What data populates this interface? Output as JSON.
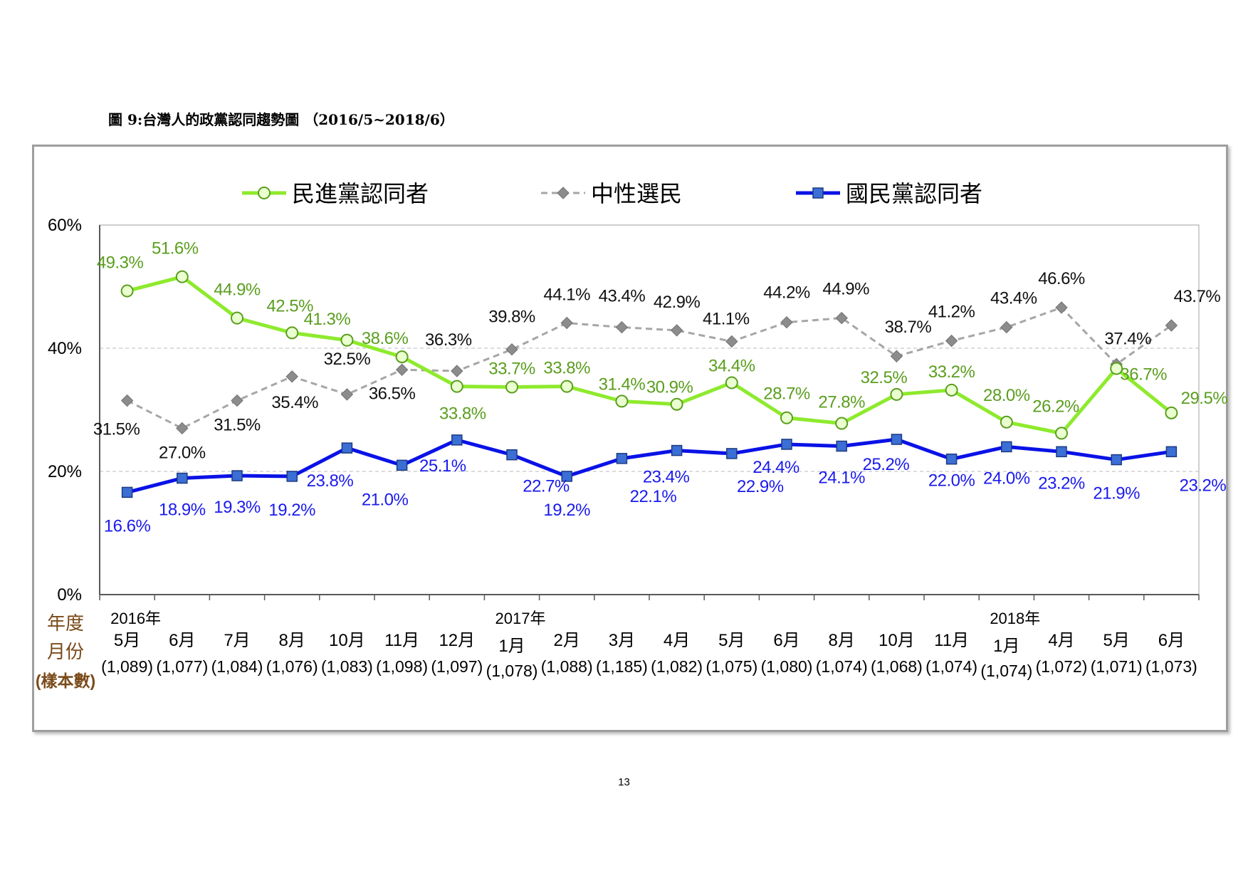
{
  "figure_title": "圖 9:台灣人的政黨認同趨勢圖 （2016/5~2018/6）",
  "page_number": "13",
  "chart_data": {
    "type": "line",
    "ylim": [
      0,
      60
    ],
    "yticks": [
      "0%",
      "20%",
      "40%",
      "60%"
    ],
    "ytick_values": [
      0,
      20,
      40,
      60
    ],
    "grid": "horizontal dashed at 20% and 40%",
    "legend_position": "top",
    "row_labels": {
      "year": "年度",
      "month": "月份",
      "sample": "(樣本數)"
    },
    "year_labels": [
      "2016年",
      "",
      "",
      "",
      "",
      "",
      "",
      "2017年",
      "",
      "",
      "",
      "",
      "",
      "",
      "",
      "",
      "2018年",
      "",
      "",
      ""
    ],
    "months": [
      "5月",
      "6月",
      "7月",
      "8月",
      "10月",
      "11月",
      "12月",
      "1月",
      "2月",
      "3月",
      "4月",
      "5月",
      "6月",
      "8月",
      "10月",
      "11月",
      "1月",
      "4月",
      "5月",
      "6月"
    ],
    "samples": [
      "(1,089)",
      "(1,077)",
      "(1,084)",
      "(1,076)",
      "(1,083)",
      "(1,098)",
      "(1,097)",
      "(1,078)",
      "(1,088)",
      "(1,185)",
      "(1,082)",
      "(1,075)",
      "(1,080)",
      "(1,074)",
      "(1,068)",
      "(1,074)",
      "(1,074)",
      "(1,072)",
      "(1,071)",
      "(1,073)"
    ],
    "series": [
      {
        "name": "民進黨認同者",
        "color": "#8eea2d",
        "label_color": "#5a9e1e",
        "marker": "circle",
        "values": [
          49.3,
          51.6,
          44.9,
          42.5,
          41.3,
          38.6,
          33.8,
          33.7,
          33.8,
          31.4,
          30.9,
          34.4,
          28.7,
          27.8,
          32.5,
          33.2,
          28.0,
          26.2,
          36.7,
          29.5
        ],
        "labels": [
          "49.3%",
          "51.6%",
          "44.9%",
          "42.5%",
          "41.3%",
          "38.6%",
          "33.8%",
          "33.7%",
          "33.8%",
          "31.4%",
          "30.9%",
          "34.4%",
          "28.7%",
          "27.8%",
          "32.5%",
          "33.2%",
          "28.0%",
          "26.2%",
          "36.7%",
          "29.5%"
        ]
      },
      {
        "name": "中性選民",
        "color": "#a6a6a6",
        "label_color": "#111111",
        "marker": "diamond",
        "dashed": true,
        "values": [
          31.5,
          27.0,
          31.5,
          35.4,
          32.5,
          36.5,
          36.3,
          39.8,
          44.1,
          43.4,
          42.9,
          41.1,
          44.2,
          44.9,
          38.7,
          41.2,
          43.4,
          46.6,
          37.4,
          43.7
        ],
        "labels": [
          "31.5%",
          "27.0%",
          "31.5%",
          "35.4%",
          "32.5%",
          "36.5%",
          "36.3%",
          "39.8%",
          "44.1%",
          "43.4%",
          "42.9%",
          "41.1%",
          "44.2%",
          "44.9%",
          "38.7%",
          "41.2%",
          "43.4%",
          "46.6%",
          "37.4%",
          "43.7%"
        ]
      },
      {
        "name": "國民黨認同者",
        "color": "#0a12e6",
        "label_color": "#1a1aee",
        "marker": "square",
        "marker_fill": "#3b6fd6",
        "values": [
          16.6,
          18.9,
          19.3,
          19.2,
          23.8,
          21.0,
          25.1,
          22.7,
          19.2,
          22.1,
          23.4,
          22.9,
          24.4,
          24.1,
          25.2,
          22.0,
          24.0,
          23.2,
          21.9,
          23.2
        ],
        "labels": [
          "16.6%",
          "18.9%",
          "19.3%",
          "19.2%",
          "23.8%",
          "21.0%",
          "25.1%",
          "22.7%",
          "19.2%",
          "22.1%",
          "23.4%",
          "22.9%",
          "24.4%",
          "24.1%",
          "25.2%",
          "22.0%",
          "24.0%",
          "23.2%",
          "21.9%",
          "23.2%"
        ]
      }
    ]
  }
}
